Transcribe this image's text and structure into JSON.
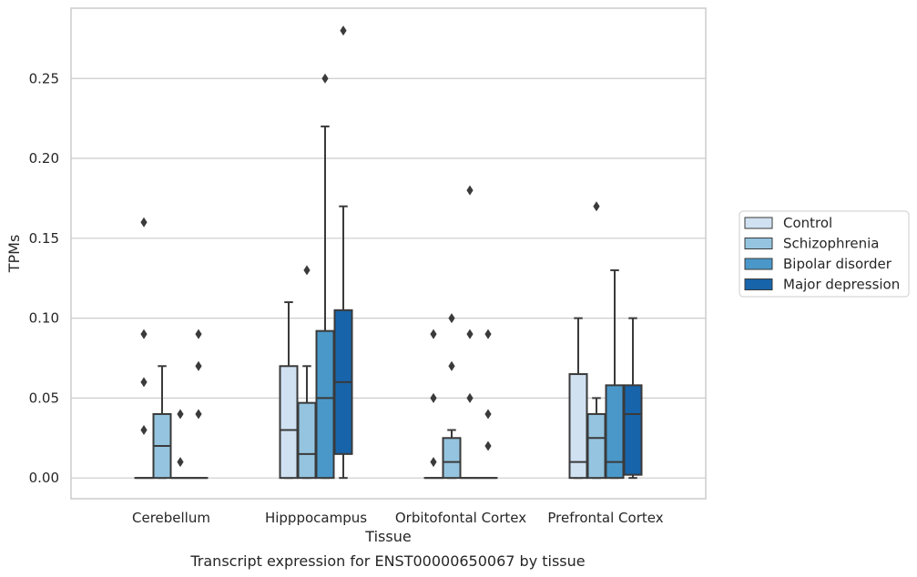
{
  "chart_data": {
    "type": "box",
    "xlabel": "Tissue",
    "ylabel": "TPMs",
    "caption": "Transcript expression for ENST00000650067 by tissue",
    "categories": [
      "Cerebellum",
      "Hipppocampus",
      "Orbitofontal Cortex",
      "Prefrontal Cortex"
    ],
    "ylim": [
      -0.013,
      0.294
    ],
    "yticks": [
      0.0,
      0.05,
      0.1,
      0.15,
      0.2,
      0.25
    ],
    "ytick_labels": [
      "0.00",
      "0.05",
      "0.10",
      "0.15",
      "0.20",
      "0.25"
    ],
    "grid": "horizontal",
    "legend_position": "right",
    "series": [
      {
        "name": "Control",
        "color": "#d0e1f2",
        "boxes": [
          {
            "whislo": 0.0,
            "q1": 0.0,
            "med": 0.0,
            "q3": 0.0,
            "whishi": 0.0,
            "fliers": [
              0.03,
              0.06,
              0.09,
              0.16
            ]
          },
          {
            "whislo": 0.0,
            "q1": 0.0,
            "med": 0.03,
            "q3": 0.07,
            "whishi": 0.11,
            "fliers": []
          },
          {
            "whislo": 0.0,
            "q1": 0.0,
            "med": 0.0,
            "q3": 0.0,
            "whishi": 0.0,
            "fliers": [
              0.01,
              0.05,
              0.09
            ]
          },
          {
            "whislo": 0.0,
            "q1": 0.0,
            "med": 0.01,
            "q3": 0.065,
            "whishi": 0.1,
            "fliers": []
          }
        ]
      },
      {
        "name": "Schizophrenia",
        "color": "#94c4df",
        "boxes": [
          {
            "whislo": 0.0,
            "q1": 0.0,
            "med": 0.02,
            "q3": 0.04,
            "whishi": 0.07,
            "fliers": []
          },
          {
            "whislo": 0.0,
            "q1": 0.0,
            "med": 0.015,
            "q3": 0.047,
            "whishi": 0.07,
            "fliers": [
              0.13
            ]
          },
          {
            "whislo": 0.0,
            "q1": 0.0,
            "med": 0.01,
            "q3": 0.025,
            "whishi": 0.03,
            "fliers": [
              0.07,
              0.1
            ]
          },
          {
            "whislo": 0.0,
            "q1": 0.0,
            "med": 0.025,
            "q3": 0.04,
            "whishi": 0.05,
            "fliers": [
              0.17
            ]
          }
        ]
      },
      {
        "name": "Bipolar disorder",
        "color": "#4a98c9",
        "boxes": [
          {
            "whislo": 0.0,
            "q1": 0.0,
            "med": 0.0,
            "q3": 0.0,
            "whishi": 0.0,
            "fliers": [
              0.01,
              0.04
            ]
          },
          {
            "whislo": 0.0,
            "q1": 0.0,
            "med": 0.05,
            "q3": 0.092,
            "whishi": 0.22,
            "fliers": [
              0.25
            ]
          },
          {
            "whislo": 0.0,
            "q1": 0.0,
            "med": 0.0,
            "q3": 0.0,
            "whishi": 0.0,
            "fliers": [
              0.05,
              0.09,
              0.18
            ]
          },
          {
            "whislo": 0.0,
            "q1": 0.0,
            "med": 0.01,
            "q3": 0.058,
            "whishi": 0.13,
            "fliers": []
          }
        ]
      },
      {
        "name": "Major depression",
        "color": "#1764ab",
        "boxes": [
          {
            "whislo": 0.0,
            "q1": 0.0,
            "med": 0.0,
            "q3": 0.0,
            "whishi": 0.0,
            "fliers": [
              0.04,
              0.07,
              0.09
            ]
          },
          {
            "whislo": 0.0,
            "q1": 0.015,
            "med": 0.06,
            "q3": 0.105,
            "whishi": 0.17,
            "fliers": [
              0.28
            ]
          },
          {
            "whislo": 0.0,
            "q1": 0.0,
            "med": 0.0,
            "q3": 0.0,
            "whishi": 0.0,
            "fliers": [
              0.02,
              0.04,
              0.09
            ]
          },
          {
            "whislo": 0.0,
            "q1": 0.002,
            "med": 0.04,
            "q3": 0.058,
            "whishi": 0.1,
            "fliers": []
          }
        ]
      }
    ]
  }
}
